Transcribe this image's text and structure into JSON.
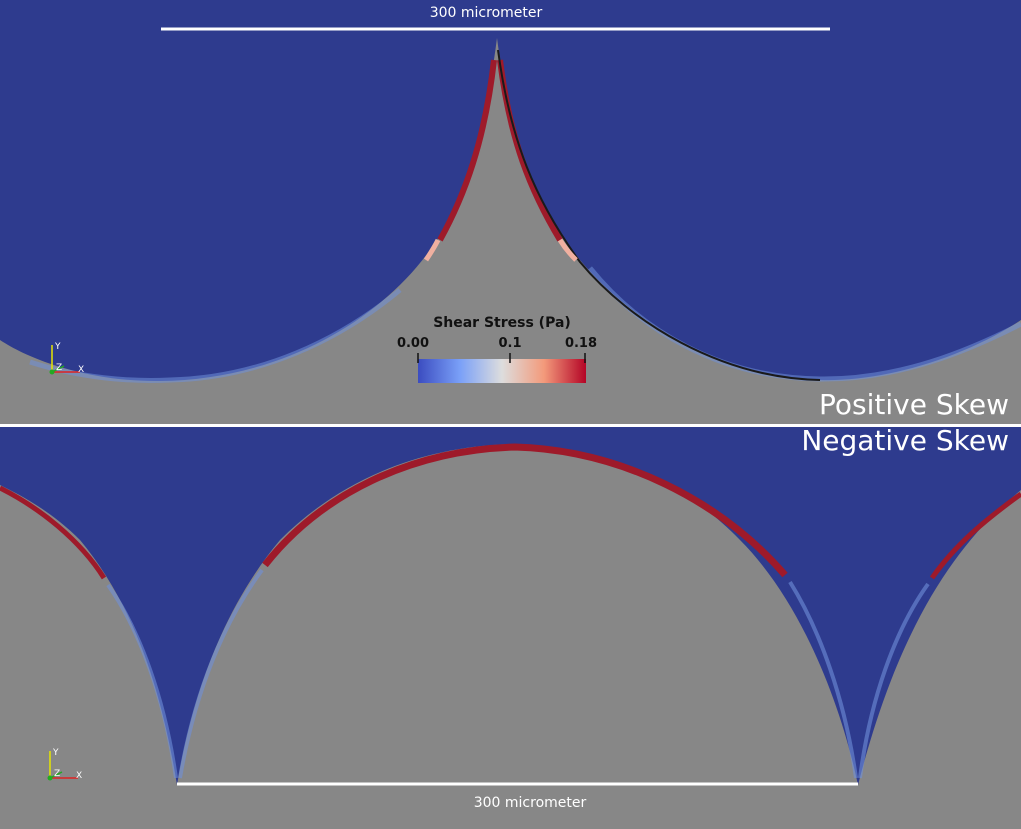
{
  "top_panel": {
    "scale_bar_label": "300 micrometer",
    "panel_label": "Positive Skew"
  },
  "bottom_panel": {
    "scale_bar_label": "300 micrometer",
    "panel_label": "Negative Skew"
  },
  "colorbar": {
    "title": "Shear Stress (Pa)",
    "ticks": [
      "0.00",
      "0.1",
      "0.18"
    ],
    "colors": [
      "#3b4cc0",
      "#dddddd",
      "#b40426"
    ]
  },
  "axes_widget": {
    "x": "X",
    "y": "Y",
    "z": "Z"
  },
  "colors": {
    "fluid": "#2e3b8e",
    "solid": "#878787",
    "high_stress": "#9e1a2a",
    "label_text": "#ffffff"
  }
}
